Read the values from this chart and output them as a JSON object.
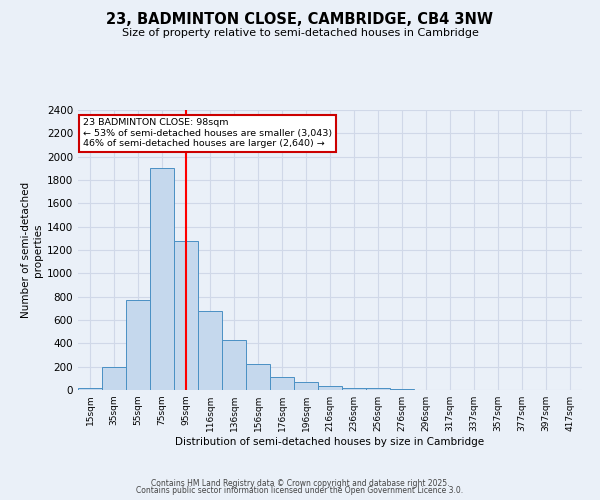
{
  "title": "23, BADMINTON CLOSE, CAMBRIDGE, CB4 3NW",
  "subtitle": "Size of property relative to semi-detached houses in Cambridge",
  "xlabel": "Distribution of semi-detached houses by size in Cambridge",
  "ylabel": "Number of semi-detached\nproperties",
  "bar_labels": [
    "15sqm",
    "35sqm",
    "55sqm",
    "75sqm",
    "95sqm",
    "116sqm",
    "136sqm",
    "156sqm",
    "176sqm",
    "196sqm",
    "216sqm",
    "236sqm",
    "256sqm",
    "276sqm",
    "296sqm",
    "317sqm",
    "337sqm",
    "357sqm",
    "377sqm",
    "397sqm",
    "417sqm"
  ],
  "bar_heights": [
    15,
    200,
    775,
    1900,
    1280,
    680,
    425,
    225,
    110,
    65,
    35,
    20,
    15,
    10,
    0,
    0,
    0,
    0,
    0,
    0,
    0
  ],
  "bar_color": "#c5d8ed",
  "bar_edge_color": "#4a90c4",
  "red_line_x": 4.0,
  "red_line_label": "23 BADMINTON CLOSE: 98sqm",
  "annotation_left": "← 53% of semi-detached houses are smaller (3,043)",
  "annotation_right": "46% of semi-detached houses are larger (2,640) →",
  "annotation_box_color": "#ffffff",
  "annotation_box_edge": "#cc0000",
  "ylim": [
    0,
    2400
  ],
  "yticks": [
    0,
    200,
    400,
    600,
    800,
    1000,
    1200,
    1400,
    1600,
    1800,
    2000,
    2200,
    2400
  ],
  "grid_color": "#d0d8e8",
  "background_color": "#eaf0f8",
  "footer1": "Contains HM Land Registry data © Crown copyright and database right 2025.",
  "footer2": "Contains public sector information licensed under the Open Government Licence 3.0."
}
